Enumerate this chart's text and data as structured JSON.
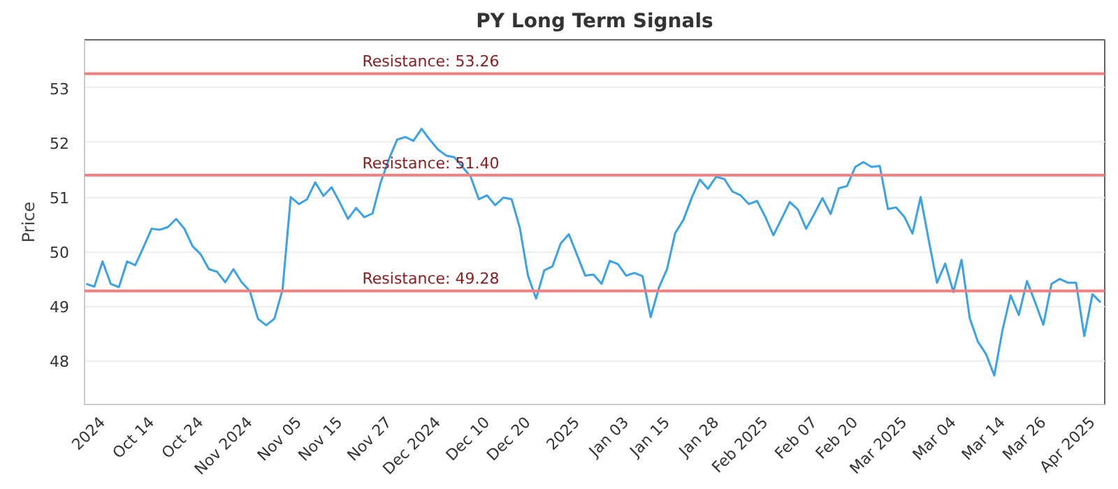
{
  "chart_data": {
    "type": "line",
    "title": "PY Long Term Signals",
    "ylabel": "Price",
    "categories": [
      null,
      null,
      "2024",
      null,
      null,
      null,
      null,
      null,
      "Oct 14",
      null,
      null,
      null,
      null,
      null,
      "Oct 24",
      null,
      null,
      null,
      null,
      null,
      "Nov 2024",
      null,
      null,
      null,
      null,
      null,
      "Nov 05",
      null,
      null,
      null,
      null,
      "Nov 15",
      null,
      null,
      null,
      null,
      null,
      "Nov 27",
      null,
      null,
      null,
      null,
      null,
      "Dec 2024",
      null,
      null,
      null,
      null,
      null,
      "Dec 10",
      null,
      null,
      null,
      null,
      "Dec 20",
      null,
      null,
      null,
      null,
      null,
      "2025",
      null,
      null,
      null,
      null,
      null,
      "Jan 03",
      null,
      null,
      null,
      null,
      "Jan 15",
      null,
      null,
      null,
      null,
      null,
      "Jan 28",
      null,
      null,
      null,
      null,
      null,
      "Feb 2025",
      null,
      null,
      null,
      null,
      null,
      "Feb 07",
      null,
      null,
      null,
      null,
      "Feb 20",
      null,
      null,
      null,
      null,
      null,
      "Mar 2025",
      null,
      null,
      null,
      null,
      null,
      "Mar 04",
      null,
      null,
      null,
      null,
      null,
      "Mar 14",
      null,
      null,
      null,
      null,
      "Mar 26",
      null,
      null,
      null,
      null,
      null,
      "Apr 2025",
      null
    ],
    "series": [
      {
        "color": "#3ba1e8",
        "values": [
          49.41,
          49.36,
          49.82,
          49.41,
          49.35,
          49.82,
          49.75,
          50.08,
          50.42,
          50.4,
          50.45,
          50.6,
          50.42,
          50.1,
          49.95,
          49.68,
          49.63,
          49.44,
          49.68,
          49.44,
          49.28,
          48.77,
          48.65,
          48.77,
          49.3,
          51.0,
          50.87,
          50.96,
          51.27,
          51.02,
          51.18,
          50.9,
          50.6,
          50.8,
          50.63,
          50.7,
          51.27,
          51.69,
          52.05,
          52.1,
          52.03,
          52.25,
          52.05,
          51.87,
          51.76,
          51.73,
          51.55,
          51.37,
          50.96,
          51.03,
          50.85,
          50.99,
          50.96,
          50.44,
          49.56,
          49.14,
          49.66,
          49.73,
          50.15,
          50.32,
          49.94,
          49.56,
          49.58,
          49.41,
          49.83,
          49.77,
          49.56,
          49.61,
          49.55,
          48.8,
          49.34,
          49.68,
          50.34,
          50.58,
          50.98,
          51.32,
          51.15,
          51.37,
          51.33,
          51.1,
          51.03,
          50.87,
          50.93,
          50.64,
          50.3,
          50.6,
          50.91,
          50.77,
          50.42,
          50.69,
          50.98,
          50.69,
          51.16,
          51.2,
          51.55,
          51.64,
          51.55,
          51.57,
          50.78,
          50.81,
          50.64,
          50.33,
          51.0,
          50.2,
          49.43,
          49.78,
          49.26,
          49.85,
          48.78,
          48.35,
          48.12,
          47.73,
          48.56,
          49.2,
          48.84,
          49.46,
          49.07,
          48.66,
          49.41,
          49.5,
          49.43,
          49.43,
          48.45,
          49.22,
          49.07
        ]
      }
    ],
    "ylim": [
      47.2,
      53.88
    ],
    "yticks": [
      48,
      49,
      50,
      51,
      52,
      53
    ],
    "grid": "y",
    "marker": "none",
    "line_style": "solid",
    "ref_lines": [
      {
        "axis": "y",
        "value": 53.26,
        "label": "Resistance: 53.26",
        "color": "#f08080"
      },
      {
        "axis": "y",
        "value": 51.4,
        "label": "Resistance: 51.40",
        "color": "#f08080"
      },
      {
        "axis": "y",
        "value": 49.28,
        "label": "Resistance: 49.28",
        "color": "#f08080"
      }
    ]
  }
}
